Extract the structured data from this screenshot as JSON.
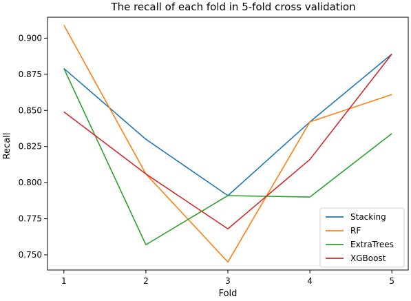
{
  "chart_data": {
    "type": "line",
    "title": "The recall of each fold in 5-fold cross validation",
    "xlabel": "Fold",
    "ylabel": "Recall",
    "x": [
      1,
      2,
      3,
      4,
      5
    ],
    "xticks": [
      "1",
      "2",
      "3",
      "4",
      "5"
    ],
    "yticks": [
      "0.750",
      "0.775",
      "0.800",
      "0.825",
      "0.850",
      "0.875",
      "0.900"
    ],
    "ytick_values": [
      0.75,
      0.775,
      0.8,
      0.825,
      0.85,
      0.875,
      0.9
    ],
    "ylim": [
      0.7395,
      0.9145
    ],
    "xlim": [
      0.8,
      5.2
    ],
    "grid": false,
    "legend_position": "bottom-right",
    "series": [
      {
        "name": "Stacking",
        "color": "#1f77b4",
        "values": [
          0.879,
          0.83,
          0.791,
          0.842,
          0.889
        ]
      },
      {
        "name": "RF",
        "color": "#ff7f0e",
        "values": [
          0.909,
          0.806,
          0.745,
          0.842,
          0.861
        ]
      },
      {
        "name": "ExtraTrees",
        "color": "#2ca02c",
        "values": [
          0.879,
          0.757,
          0.791,
          0.79,
          0.834
        ]
      },
      {
        "name": "XGBoost",
        "color": "#d62728",
        "values": [
          0.849,
          0.806,
          0.768,
          0.816,
          0.889
        ]
      }
    ]
  }
}
